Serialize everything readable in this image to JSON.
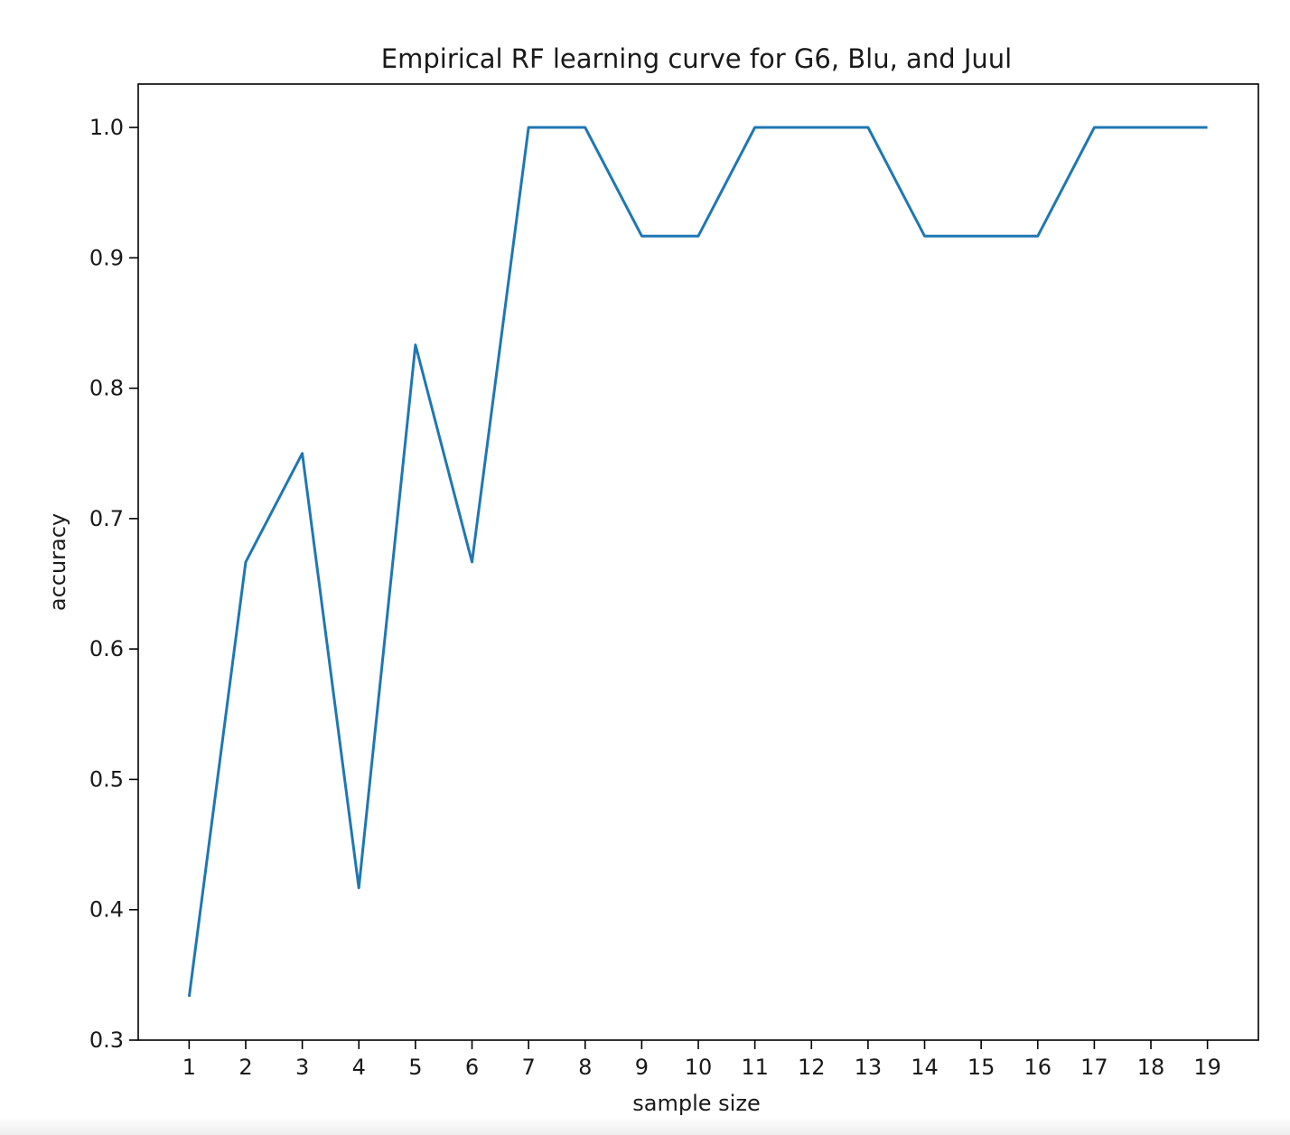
{
  "chart_data": {
    "type": "line",
    "title": "Empirical RF learning curve for G6, Blu, and Juul",
    "xlabel": "sample size",
    "ylabel": "accuracy",
    "xlim": [
      0.1,
      19.9
    ],
    "ylim": [
      0.3,
      1.0333
    ],
    "x": [
      1,
      2,
      3,
      4,
      5,
      6,
      7,
      8,
      9,
      10,
      11,
      12,
      13,
      14,
      15,
      16,
      17,
      18,
      19
    ],
    "x_tick_labels": [
      "1",
      "2",
      "3",
      "4",
      "5",
      "6",
      "7",
      "8",
      "9",
      "10",
      "11",
      "12",
      "13",
      "14",
      "15",
      "16",
      "17",
      "18",
      "19"
    ],
    "y_ticks": [
      0.3,
      0.4,
      0.5,
      0.6,
      0.7,
      0.8,
      0.9,
      1.0
    ],
    "y_tick_labels": [
      "0.3",
      "0.4",
      "0.5",
      "0.6",
      "0.7",
      "0.8",
      "0.9",
      "1.0"
    ],
    "series": [
      {
        "values": [
          0.3333,
          0.6667,
          0.75,
          0.4167,
          0.8333,
          0.6667,
          1.0,
          1.0,
          0.9167,
          0.9167,
          1.0,
          1.0,
          1.0,
          0.9167,
          0.9167,
          0.9167,
          1.0,
          1.0,
          1.0
        ],
        "color": "#1f77b4"
      }
    ],
    "grid": false,
    "legend": "none"
  }
}
